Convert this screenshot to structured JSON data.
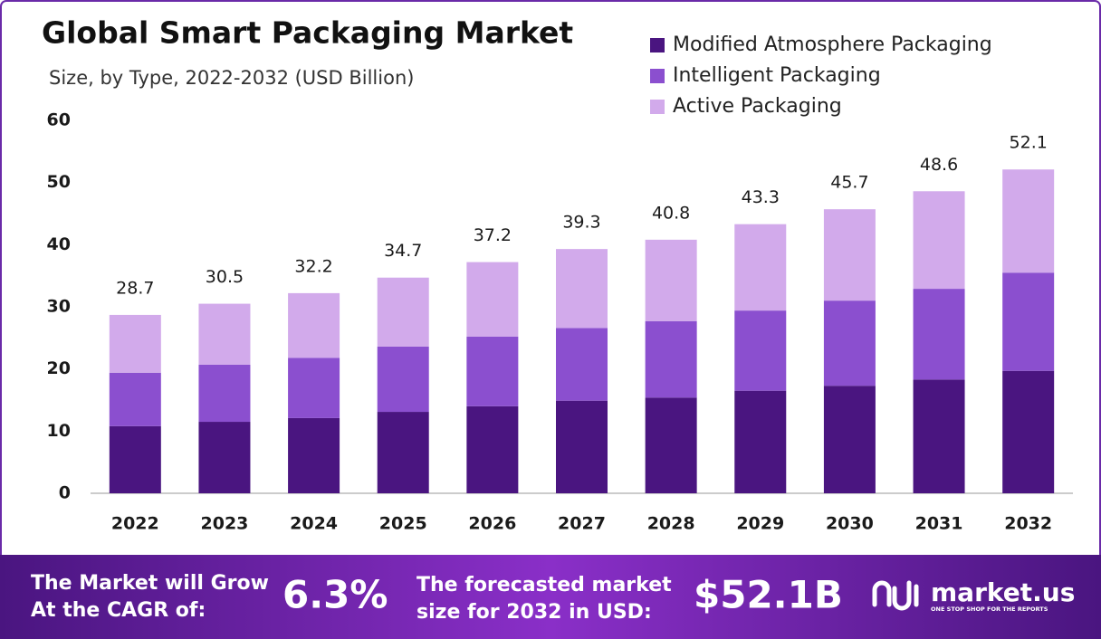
{
  "chart_data": {
    "type": "stacked_bar",
    "title": "Global Smart Packaging Market",
    "subtitle": "Size, by Type, 2022-2032 (USD Billion)",
    "categories": [
      "2022",
      "2023",
      "2024",
      "2025",
      "2026",
      "2027",
      "2028",
      "2029",
      "2030",
      "2031",
      "2032"
    ],
    "series": [
      {
        "name": "Modified Atmosphere Packaging",
        "color": "#4a1580",
        "values": [
          10.8,
          11.5,
          12.1,
          13.1,
          14.0,
          14.9,
          15.4,
          16.5,
          17.3,
          18.3,
          19.7
        ]
      },
      {
        "name": "Intelligent Packaging",
        "color": "#8b4fcf",
        "values": [
          8.6,
          9.2,
          9.7,
          10.5,
          11.2,
          11.7,
          12.3,
          12.9,
          13.7,
          14.6,
          15.8
        ]
      },
      {
        "name": "Active Packaging",
        "color": "#d2aaeb",
        "values": [
          9.3,
          9.8,
          10.4,
          11.1,
          12.0,
          12.7,
          13.1,
          13.9,
          14.7,
          15.7,
          16.6
        ]
      }
    ],
    "totals": [
      28.7,
      30.5,
      32.2,
      34.7,
      37.2,
      39.3,
      40.8,
      43.3,
      45.7,
      48.6,
      52.1
    ],
    "ylim": [
      0,
      60
    ],
    "yticks": [
      0,
      10,
      20,
      30,
      40,
      50,
      60
    ],
    "grid": false,
    "legend": "top-right"
  },
  "footer": {
    "cagr_text": [
      "The Market will Grow",
      "At the CAGR of:"
    ],
    "cagr_value": "6.3%",
    "forecast_text": [
      "The forecasted market",
      "size for 2032 in USD:"
    ],
    "forecast_value": "$52.1B",
    "brand": "market.us",
    "tagline": "ONE STOP SHOP FOR THE REPORTS"
  }
}
